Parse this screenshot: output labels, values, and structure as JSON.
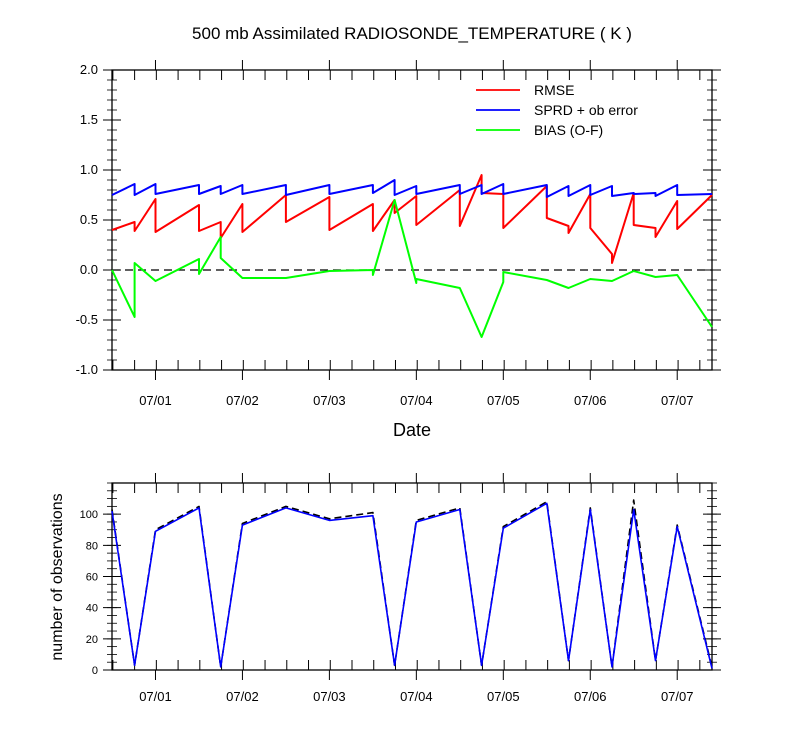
{
  "chart_data": [
    {
      "type": "line",
      "title": "500 mb Assimilated RADIOSONDE_TEMPERATURE ( K )",
      "xlabel": "Date",
      "ylabel": "",
      "xlim": [
        0,
        6.9
      ],
      "ylim": [
        -1.0,
        2.0
      ],
      "x_tick_positions": [
        0.5,
        1.5,
        2.5,
        3.5,
        4.5,
        5.5,
        6.5
      ],
      "x_tick_labels": [
        "07/01",
        "07/02",
        "07/03",
        "07/04",
        "07/05",
        "07/06",
        "07/07"
      ],
      "y_ticks": [
        -1.0,
        -0.5,
        0.0,
        0.5,
        1.0,
        1.5,
        2.0
      ],
      "y_tick_labels": [
        "-1.0",
        "-0.5",
        "0.0",
        "0.5",
        "1.0",
        "1.5",
        "2.0"
      ],
      "zero_line": true,
      "grid": false,
      "legend_position": "top-right",
      "series": [
        {
          "name": "RMSE",
          "color": "#ff0000",
          "x": [
            0,
            0.26,
            0.26,
            0.5,
            0.5,
            1.0,
            1.0,
            1.25,
            1.25,
            1.5,
            1.5,
            2.0,
            2.0,
            2.5,
            2.5,
            3.0,
            3.0,
            3.25,
            3.25,
            3.5,
            3.5,
            4.0,
            4.0,
            4.25,
            4.25,
            4.5,
            4.5,
            5.0,
            5.0,
            5.25,
            5.25,
            5.5,
            5.5,
            5.75,
            5.75,
            6.0,
            6.0,
            6.25,
            6.25,
            6.5,
            6.5,
            6.9
          ],
          "y": [
            0.4,
            0.48,
            0.39,
            0.71,
            0.38,
            0.65,
            0.39,
            0.48,
            0.32,
            0.66,
            0.38,
            0.75,
            0.48,
            0.73,
            0.4,
            0.66,
            0.39,
            0.7,
            0.57,
            0.74,
            0.45,
            0.8,
            0.44,
            0.95,
            0.77,
            0.76,
            0.42,
            0.84,
            0.52,
            0.44,
            0.37,
            0.76,
            0.42,
            0.16,
            0.07,
            0.77,
            0.45,
            0.42,
            0.33,
            0.69,
            0.41,
            0.75
          ]
        },
        {
          "name": "SPRD + ob error",
          "color": "#0000ff",
          "x": [
            0,
            0.26,
            0.26,
            0.5,
            0.5,
            1.0,
            1.0,
            1.25,
            1.25,
            1.5,
            1.5,
            2.0,
            2.0,
            2.5,
            2.5,
            3.0,
            3.0,
            3.25,
            3.25,
            3.5,
            3.5,
            4.0,
            4.0,
            4.25,
            4.25,
            4.5,
            4.5,
            5.0,
            5.0,
            5.25,
            5.25,
            5.5,
            5.5,
            5.75,
            5.75,
            6.0,
            6.0,
            6.25,
            6.25,
            6.5,
            6.5,
            6.9
          ],
          "y": [
            0.75,
            0.86,
            0.75,
            0.86,
            0.76,
            0.85,
            0.76,
            0.84,
            0.76,
            0.85,
            0.76,
            0.85,
            0.75,
            0.85,
            0.76,
            0.85,
            0.77,
            0.9,
            0.75,
            0.84,
            0.76,
            0.85,
            0.76,
            0.85,
            0.76,
            0.86,
            0.76,
            0.85,
            0.73,
            0.84,
            0.74,
            0.85,
            0.75,
            0.84,
            0.74,
            0.77,
            0.76,
            0.77,
            0.74,
            0.85,
            0.75,
            0.76
          ]
        },
        {
          "name": "BIAS (O-F)",
          "color": "#00ff00",
          "x": [
            0,
            0.26,
            0.26,
            0.5,
            1.0,
            1.0,
            1.25,
            1.25,
            1.5,
            2.0,
            2.5,
            3.0,
            3.0,
            3.25,
            3.5,
            3.5,
            4.0,
            4.25,
            4.5,
            4.5,
            5.0,
            5.25,
            5.5,
            5.75,
            6.0,
            6.25,
            6.5,
            6.9
          ],
          "y": [
            0.0,
            -0.47,
            0.07,
            -0.11,
            0.11,
            -0.04,
            0.33,
            0.12,
            -0.08,
            -0.08,
            -0.01,
            0.0,
            -0.05,
            0.7,
            -0.13,
            -0.09,
            -0.18,
            -0.67,
            -0.12,
            -0.02,
            -0.1,
            -0.18,
            -0.09,
            -0.11,
            -0.01,
            -0.07,
            -0.05,
            -0.57
          ]
        }
      ]
    },
    {
      "type": "line",
      "title": "",
      "xlabel": "",
      "ylabel": "number of observations",
      "xlim": [
        0,
        6.9
      ],
      "ylim": [
        0,
        120
      ],
      "x_tick_positions": [
        0.5,
        1.5,
        2.5,
        3.5,
        4.5,
        5.5,
        6.5
      ],
      "x_tick_labels": [
        "07/01",
        "07/02",
        "07/03",
        "07/04",
        "07/05",
        "07/06",
        "07/07"
      ],
      "y_ticks": [
        0,
        20,
        40,
        60,
        80,
        100
      ],
      "y_tick_labels": [
        "0",
        "20",
        "40",
        "60",
        "80",
        "100"
      ],
      "grid": false,
      "series": [
        {
          "name": "dashed",
          "color": "#000000",
          "dash": true,
          "x": [
            0,
            0.26,
            0.5,
            1.0,
            1.25,
            1.5,
            2.0,
            2.5,
            3.0,
            3.25,
            3.5,
            4.0,
            4.25,
            4.5,
            5.0,
            5.25,
            5.5,
            5.75,
            6.0,
            6.25,
            6.5,
            6.9
          ],
          "y": [
            103,
            3,
            90,
            105,
            2,
            94,
            105,
            97,
            101,
            3,
            96,
            104,
            3,
            92,
            108,
            6,
            104,
            2,
            109,
            6,
            93,
            2
          ]
        },
        {
          "name": "solid",
          "color": "#0000ff",
          "dash": false,
          "x": [
            0,
            0.26,
            0.5,
            1.0,
            1.25,
            1.5,
            2.0,
            2.5,
            3.0,
            3.25,
            3.5,
            4.0,
            4.25,
            4.5,
            5.0,
            5.25,
            5.5,
            5.75,
            6.0,
            6.25,
            6.5,
            6.9
          ],
          "y": [
            102,
            3,
            89,
            104,
            2,
            93,
            104,
            96,
            99,
            3,
            95,
            103,
            3,
            91,
            107,
            6,
            103,
            2,
            103,
            6,
            92,
            1
          ]
        }
      ]
    }
  ]
}
